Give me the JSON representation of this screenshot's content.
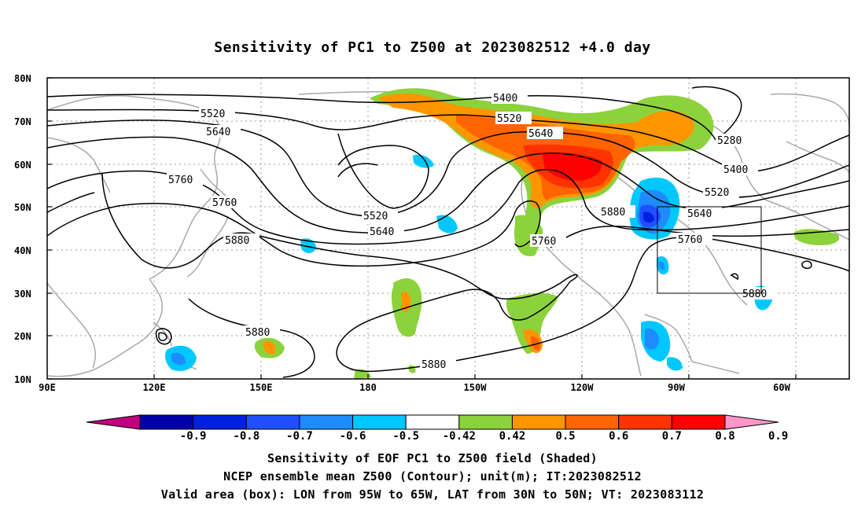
{
  "title": "Sensitivity of PC1 to Z500 at 2023082512 +4.0 day",
  "map": {
    "lat_labels": [
      "80N",
      "70N",
      "60N",
      "50N",
      "40N",
      "30N",
      "20N",
      "10N"
    ],
    "lon_labels": [
      "90E",
      "120E",
      "150E",
      "180",
      "150W",
      "120W",
      "90W",
      "60W"
    ],
    "contour_labels": {
      "c5400a": "5400",
      "c5520a": "5520",
      "c5520b": "5520",
      "c5640a": "5640",
      "c5640b": "5640",
      "c5280": "5280",
      "c5400b": "5400",
      "c5520c": "5520",
      "c5760a": "5760",
      "c5760b": "5760",
      "c5520d": "5520",
      "c5640c": "5640",
      "c5880a": "5880",
      "c5640d": "5640",
      "c5760c": "5760",
      "c5760d": "5760",
      "c5880b": "5880",
      "c5880c": "5880",
      "c5880d": "5880",
      "c5880e": "5880"
    },
    "valid_box": {
      "lon_from": "95W",
      "lon_to": "65W",
      "lat_from": "30N",
      "lat_to": "50N"
    }
  },
  "colorbar": {
    "labels": [
      "-0.9",
      "-0.8",
      "-0.7",
      "-0.6",
      "-0.5",
      "-0.42",
      "0.42",
      "0.5",
      "0.6",
      "0.7",
      "0.8",
      "0.9"
    ],
    "colors": [
      "#c0007f",
      "#0000a8",
      "#0020e0",
      "#1e50ff",
      "#1e8cff",
      "#00c8ff",
      "#ffffff",
      "#8cd23c",
      "#ff9600",
      "#ff6400",
      "#ff3200",
      "#ff0000",
      "#ff96c8"
    ]
  },
  "captions": {
    "line1": "Sensitivity of EOF PC1 to Z500 field (Shaded)",
    "line2": "NCEP ensemble mean Z500 (Contour); unit(m); IT:2023082512",
    "line3": "Valid area (box): LON from 95W to 65W, LAT from 30N to 50N; VT: 2023083112"
  }
}
